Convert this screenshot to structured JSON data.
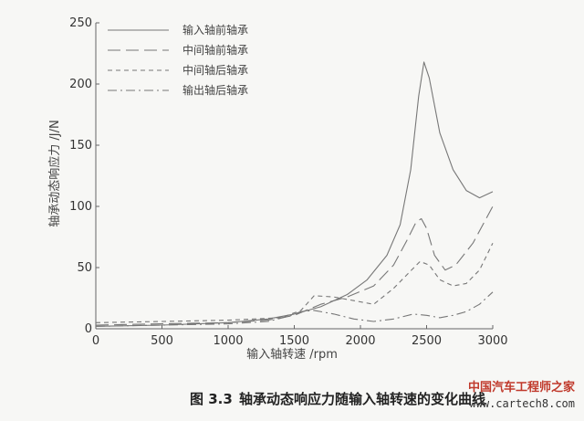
{
  "chart_data": {
    "type": "line",
    "xlabel": "输入轴转速 /rpm",
    "ylabel": "轴承动态响应力 /J/N",
    "xlim": [
      0,
      3000
    ],
    "ylim": [
      0,
      250
    ],
    "xticks": [
      0,
      500,
      1000,
      1500,
      2000,
      2500,
      3000
    ],
    "yticks": [
      0,
      50,
      100,
      150,
      200,
      250
    ],
    "legend_position": "top-left",
    "grid": false,
    "series": [
      {
        "name": "输入轴前轴承",
        "dash": "solid",
        "x": [
          0,
          500,
          1000,
          1300,
          1500,
          1700,
          1900,
          2050,
          2200,
          2300,
          2380,
          2440,
          2480,
          2520,
          2600,
          2700,
          2800,
          2900,
          3000
        ],
        "y": [
          2,
          3,
          5,
          8,
          12,
          18,
          28,
          40,
          60,
          85,
          130,
          190,
          218,
          205,
          160,
          130,
          113,
          107,
          112
        ]
      },
      {
        "name": "中间轴前轴承",
        "dash": "long-dash",
        "x": [
          0,
          500,
          1000,
          1300,
          1500,
          1700,
          1900,
          2100,
          2250,
          2350,
          2420,
          2460,
          2500,
          2560,
          2640,
          2720,
          2850,
          3000
        ],
        "y": [
          3,
          4,
          5,
          7,
          11,
          20,
          26,
          35,
          52,
          72,
          87,
          90,
          82,
          60,
          48,
          52,
          70,
          100
        ]
      },
      {
        "name": "中间轴后轴承",
        "dash": "short-dash",
        "x": [
          0,
          500,
          1000,
          1400,
          1550,
          1650,
          1800,
          1950,
          2100,
          2250,
          2350,
          2450,
          2520,
          2600,
          2700,
          2800,
          2900,
          3000
        ],
        "y": [
          5,
          6,
          7,
          9,
          15,
          27,
          26,
          23,
          20,
          33,
          44,
          55,
          52,
          40,
          35,
          37,
          48,
          70
        ]
      },
      {
        "name": "输出轴后轴承",
        "dash": "dash-dot",
        "x": [
          0,
          500,
          1000,
          1300,
          1450,
          1550,
          1650,
          1800,
          1950,
          2100,
          2250,
          2400,
          2500,
          2600,
          2700,
          2800,
          2900,
          3000
        ],
        "y": [
          2,
          3,
          4,
          6,
          10,
          14,
          15,
          12,
          8,
          6,
          8,
          12,
          11,
          9,
          11,
          14,
          20,
          30
        ]
      }
    ]
  },
  "caption": {
    "figure_number": "图 3.3",
    "text": "轴承动态响应力随输入轴转速的变化曲线"
  },
  "watermark": {
    "name": "中国汽车工程师之家",
    "url": "www.cartech8.com"
  },
  "colors": {
    "line": "#777777",
    "axis": "#666666",
    "caption": "#222222",
    "watermark": "#c0392b"
  }
}
